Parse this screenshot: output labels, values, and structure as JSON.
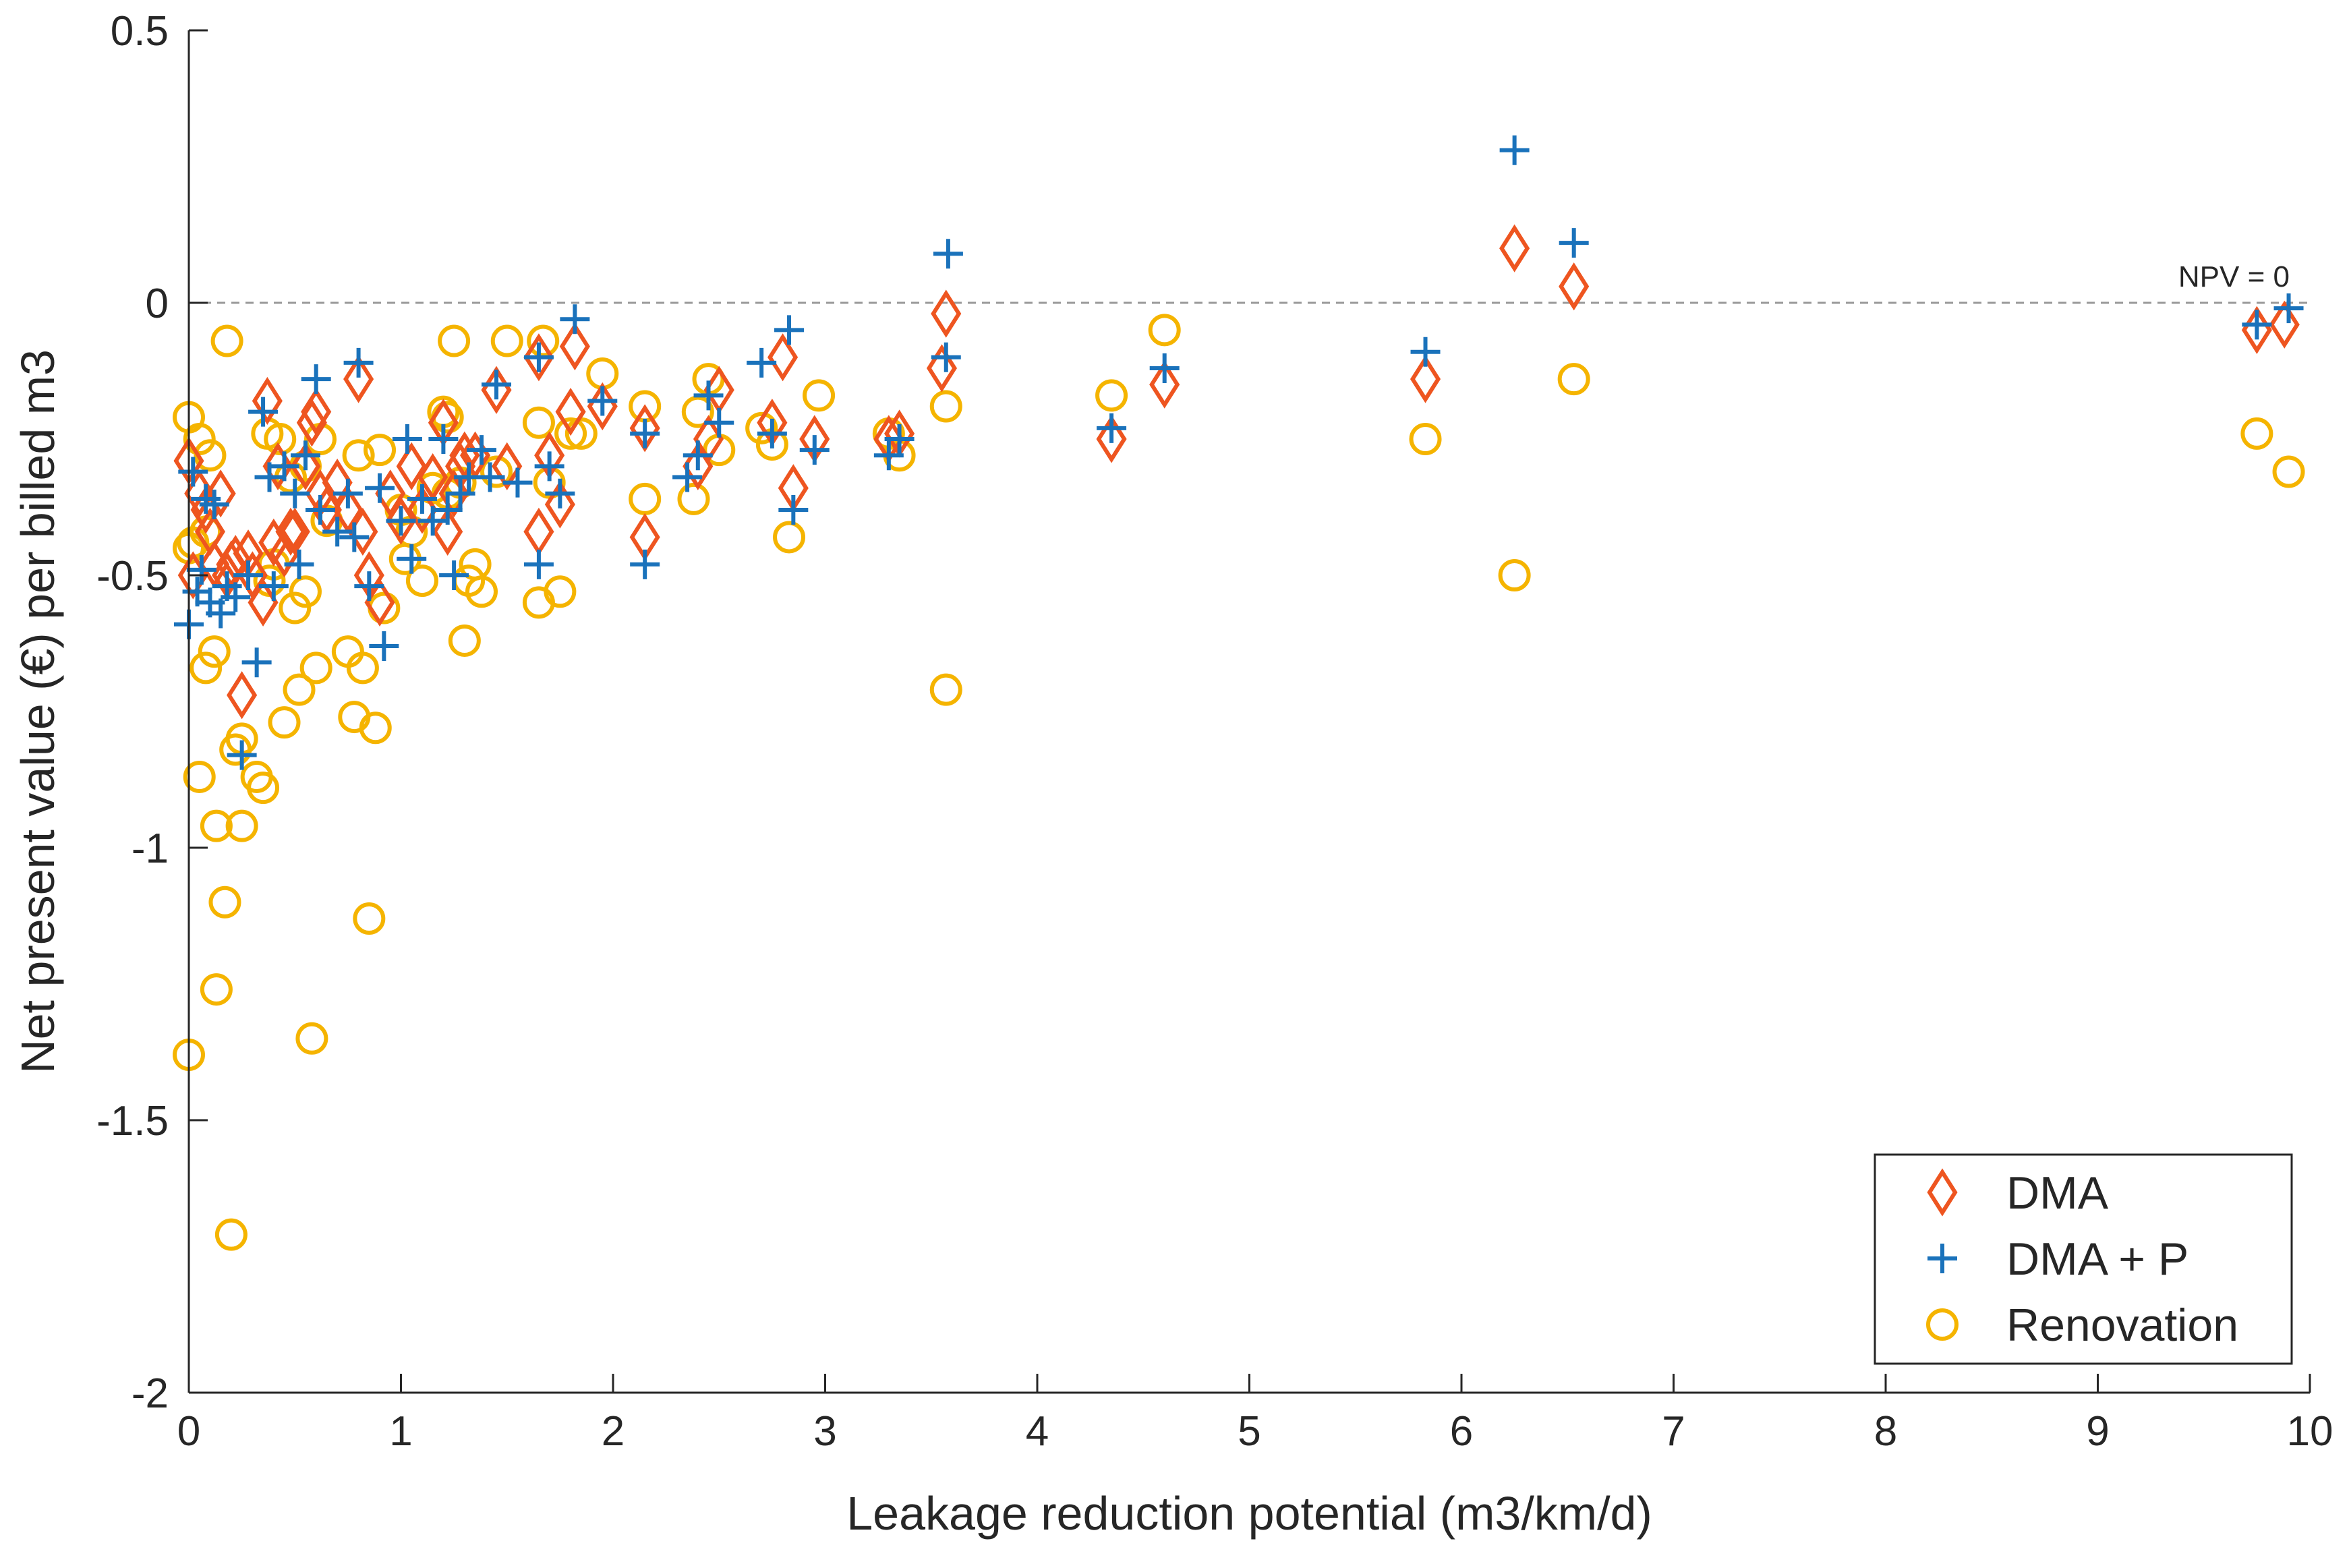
{
  "chart_data": {
    "type": "scatter",
    "title": "",
    "xlabel": "Leakage reduction potential (m3/km/d)",
    "ylabel": "Net present value (€) per billed m3",
    "xlim": [
      0,
      10
    ],
    "ylim": [
      -2,
      0.5
    ],
    "xticks": [
      "0",
      "1",
      "2",
      "3",
      "4",
      "5",
      "6",
      "7",
      "8",
      "9",
      "10"
    ],
    "yticks": [
      "0.5",
      "0",
      "-0.5",
      "-1",
      "-1.5",
      "-2"
    ],
    "grid": false,
    "legend_position": "bottom-right",
    "reference_line": {
      "y": 0,
      "label": "NPV = 0",
      "color": "#999999"
    },
    "series": [
      {
        "name": "DMA",
        "marker": "diamond",
        "color": "#EE5520",
        "points": [
          [
            0.0,
            -0.29
          ],
          [
            0.02,
            -0.5
          ],
          [
            0.05,
            -0.35
          ],
          [
            0.08,
            -0.38
          ],
          [
            0.1,
            -0.42
          ],
          [
            0.12,
            -0.48
          ],
          [
            0.15,
            -0.35
          ],
          [
            0.18,
            -0.5
          ],
          [
            0.2,
            -0.48
          ],
          [
            0.22,
            -0.47
          ],
          [
            0.25,
            -0.72
          ],
          [
            0.28,
            -0.46
          ],
          [
            0.3,
            -0.5
          ],
          [
            0.35,
            -0.55
          ],
          [
            0.37,
            -0.18
          ],
          [
            0.4,
            -0.44
          ],
          [
            0.42,
            -0.3
          ],
          [
            0.45,
            -0.46
          ],
          [
            0.48,
            -0.42
          ],
          [
            0.5,
            -0.42
          ],
          [
            0.55,
            -0.3
          ],
          [
            0.58,
            -0.22
          ],
          [
            0.6,
            -0.2
          ],
          [
            0.62,
            -0.35
          ],
          [
            0.65,
            -0.38
          ],
          [
            0.7,
            -0.33
          ],
          [
            0.75,
            -0.38
          ],
          [
            0.8,
            -0.14
          ],
          [
            0.82,
            -0.42
          ],
          [
            0.85,
            -0.5
          ],
          [
            0.9,
            -0.55
          ],
          [
            0.95,
            -0.35
          ],
          [
            1.0,
            -0.4
          ],
          [
            1.05,
            -0.3
          ],
          [
            1.1,
            -0.38
          ],
          [
            1.15,
            -0.32
          ],
          [
            1.2,
            -0.22
          ],
          [
            1.22,
            -0.42
          ],
          [
            1.25,
            -0.35
          ],
          [
            1.28,
            -0.3
          ],
          [
            1.3,
            -0.28
          ],
          [
            1.35,
            -0.28
          ],
          [
            1.45,
            -0.16
          ],
          [
            1.5,
            -0.3
          ],
          [
            1.65,
            -0.42
          ],
          [
            1.65,
            -0.1
          ],
          [
            1.7,
            -0.28
          ],
          [
            1.75,
            -0.37
          ],
          [
            1.8,
            -0.2
          ],
          [
            1.82,
            -0.08
          ],
          [
            1.95,
            -0.19
          ],
          [
            2.15,
            -0.23
          ],
          [
            2.15,
            -0.43
          ],
          [
            2.4,
            -0.3
          ],
          [
            2.45,
            -0.25
          ],
          [
            2.5,
            -0.16
          ],
          [
            2.75,
            -0.22
          ],
          [
            2.8,
            -0.1
          ],
          [
            2.85,
            -0.34
          ],
          [
            2.95,
            -0.25
          ],
          [
            3.3,
            -0.25
          ],
          [
            3.35,
            -0.24
          ],
          [
            3.55,
            -0.12
          ],
          [
            3.57,
            -0.02
          ],
          [
            4.35,
            -0.25
          ],
          [
            4.6,
            -0.15
          ],
          [
            5.83,
            -0.14
          ],
          [
            6.25,
            0.1
          ],
          [
            6.53,
            0.03
          ],
          [
            9.75,
            -0.05
          ],
          [
            9.88,
            -0.04
          ]
        ]
      },
      {
        "name": "DMA + P",
        "marker": "plus",
        "color": "#1A72BB",
        "points": [
          [
            0.0,
            -0.59
          ],
          [
            0.02,
            -0.31
          ],
          [
            0.04,
            -0.53
          ],
          [
            0.06,
            -0.49
          ],
          [
            0.08,
            -0.36
          ],
          [
            0.1,
            -0.55
          ],
          [
            0.12,
            -0.37
          ],
          [
            0.15,
            -0.57
          ],
          [
            0.18,
            -0.52
          ],
          [
            0.22,
            -0.54
          ],
          [
            0.25,
            -0.83
          ],
          [
            0.28,
            -0.5
          ],
          [
            0.32,
            -0.66
          ],
          [
            0.35,
            -0.2
          ],
          [
            0.38,
            -0.32
          ],
          [
            0.4,
            -0.52
          ],
          [
            0.45,
            -0.3
          ],
          [
            0.5,
            -0.35
          ],
          [
            0.52,
            -0.48
          ],
          [
            0.55,
            -0.28
          ],
          [
            0.6,
            -0.14
          ],
          [
            0.62,
            -0.38
          ],
          [
            0.7,
            -0.42
          ],
          [
            0.75,
            -0.35
          ],
          [
            0.78,
            -0.43
          ],
          [
            0.8,
            -0.11
          ],
          [
            0.85,
            -0.52
          ],
          [
            0.9,
            -0.34
          ],
          [
            0.92,
            -0.63
          ],
          [
            1.0,
            -0.4
          ],
          [
            1.03,
            -0.25
          ],
          [
            1.05,
            -0.47
          ],
          [
            1.1,
            -0.36
          ],
          [
            1.15,
            -0.4
          ],
          [
            1.2,
            -0.25
          ],
          [
            1.22,
            -0.38
          ],
          [
            1.25,
            -0.5
          ],
          [
            1.28,
            -0.35
          ],
          [
            1.32,
            -0.32
          ],
          [
            1.38,
            -0.27
          ],
          [
            1.42,
            -0.32
          ],
          [
            1.45,
            -0.15
          ],
          [
            1.55,
            -0.33
          ],
          [
            1.65,
            -0.48
          ],
          [
            1.65,
            -0.1
          ],
          [
            1.7,
            -0.3
          ],
          [
            1.75,
            -0.35
          ],
          [
            1.82,
            -0.03
          ],
          [
            1.95,
            -0.18
          ],
          [
            2.15,
            -0.48
          ],
          [
            2.15,
            -0.24
          ],
          [
            2.35,
            -0.32
          ],
          [
            2.4,
            -0.28
          ],
          [
            2.45,
            -0.17
          ],
          [
            2.5,
            -0.22
          ],
          [
            2.7,
            -0.11
          ],
          [
            2.75,
            -0.24
          ],
          [
            2.83,
            -0.05
          ],
          [
            2.85,
            -0.38
          ],
          [
            2.95,
            -0.27
          ],
          [
            3.3,
            -0.28
          ],
          [
            3.35,
            -0.25
          ],
          [
            3.57,
            -0.1
          ],
          [
            3.58,
            0.09
          ],
          [
            4.35,
            -0.23
          ],
          [
            4.6,
            -0.12
          ],
          [
            5.83,
            -0.09
          ],
          [
            6.25,
            0.28
          ],
          [
            6.53,
            0.11
          ],
          [
            9.75,
            -0.04
          ],
          [
            9.9,
            -0.01
          ]
        ]
      },
      {
        "name": "Renovation",
        "marker": "circle",
        "color": "#F5B400",
        "points": [
          [
            0.0,
            -0.21
          ],
          [
            0.0,
            -0.45
          ],
          [
            0.0,
            -1.38
          ],
          [
            0.02,
            -0.44
          ],
          [
            0.05,
            -0.87
          ],
          [
            0.05,
            -0.25
          ],
          [
            0.08,
            -0.42
          ],
          [
            0.08,
            -0.67
          ],
          [
            0.1,
            -0.28
          ],
          [
            0.12,
            -0.64
          ],
          [
            0.13,
            -1.26
          ],
          [
            0.13,
            -0.96
          ],
          [
            0.17,
            -1.1
          ],
          [
            0.18,
            -0.07
          ],
          [
            0.2,
            -1.71
          ],
          [
            0.22,
            -0.82
          ],
          [
            0.25,
            -0.96
          ],
          [
            0.25,
            -0.8
          ],
          [
            0.32,
            -0.87
          ],
          [
            0.35,
            -0.89
          ],
          [
            0.37,
            -0.24
          ],
          [
            0.38,
            -0.51
          ],
          [
            0.4,
            -0.48
          ],
          [
            0.43,
            -0.25
          ],
          [
            0.45,
            -0.77
          ],
          [
            0.48,
            -0.32
          ],
          [
            0.5,
            -0.56
          ],
          [
            0.52,
            -0.71
          ],
          [
            0.55,
            -0.3
          ],
          [
            0.55,
            -0.53
          ],
          [
            0.58,
            -1.35
          ],
          [
            0.6,
            -0.67
          ],
          [
            0.62,
            -0.25
          ],
          [
            0.65,
            -0.4
          ],
          [
            0.75,
            -0.64
          ],
          [
            0.78,
            -0.76
          ],
          [
            0.8,
            -0.28
          ],
          [
            0.82,
            -0.67
          ],
          [
            0.85,
            -1.13
          ],
          [
            0.88,
            -0.78
          ],
          [
            0.9,
            -0.27
          ],
          [
            0.92,
            -0.56
          ],
          [
            1.0,
            -0.38
          ],
          [
            1.02,
            -0.47
          ],
          [
            1.05,
            -0.42
          ],
          [
            1.1,
            -0.51
          ],
          [
            1.15,
            -0.34
          ],
          [
            1.2,
            -0.2
          ],
          [
            1.22,
            -0.21
          ],
          [
            1.22,
            -0.35
          ],
          [
            1.25,
            -0.07
          ],
          [
            1.28,
            -0.33
          ],
          [
            1.3,
            -0.62
          ],
          [
            1.32,
            -0.51
          ],
          [
            1.35,
            -0.48
          ],
          [
            1.38,
            -0.53
          ],
          [
            1.45,
            -0.31
          ],
          [
            1.5,
            -0.07
          ],
          [
            1.65,
            -0.55
          ],
          [
            1.65,
            -0.22
          ],
          [
            1.67,
            -0.07
          ],
          [
            1.7,
            -0.33
          ],
          [
            1.75,
            -0.53
          ],
          [
            1.8,
            -0.24
          ],
          [
            1.85,
            -0.24
          ],
          [
            1.95,
            -0.13
          ],
          [
            2.15,
            -0.19
          ],
          [
            2.15,
            -0.36
          ],
          [
            2.38,
            -0.36
          ],
          [
            2.4,
            -0.2
          ],
          [
            2.45,
            -0.14
          ],
          [
            2.5,
            -0.27
          ],
          [
            2.7,
            -0.23
          ],
          [
            2.75,
            -0.26
          ],
          [
            2.83,
            -0.43
          ],
          [
            2.97,
            -0.17
          ],
          [
            3.3,
            -0.24
          ],
          [
            3.35,
            -0.28
          ],
          [
            3.57,
            -0.71
          ],
          [
            3.57,
            -0.19
          ],
          [
            4.35,
            -0.17
          ],
          [
            4.6,
            -0.05
          ],
          [
            5.83,
            -0.25
          ],
          [
            6.25,
            -0.5
          ],
          [
            6.53,
            -0.14
          ],
          [
            9.75,
            -0.24
          ],
          [
            9.9,
            -0.31
          ]
        ]
      }
    ]
  }
}
